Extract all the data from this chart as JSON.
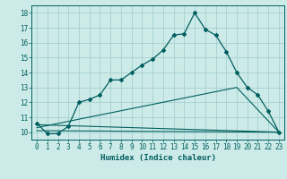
{
  "xlabel": "Humidex (Indice chaleur)",
  "bg_color": "#cceae8",
  "grid_color": "#aad4d2",
  "line_color": "#005f5f",
  "xlim": [
    -0.5,
    23.5
  ],
  "ylim": [
    9.5,
    18.5
  ],
  "xticks": [
    0,
    1,
    2,
    3,
    4,
    5,
    6,
    7,
    8,
    9,
    10,
    11,
    12,
    13,
    14,
    15,
    16,
    17,
    18,
    19,
    20,
    21,
    22,
    23
  ],
  "yticks": [
    10,
    11,
    12,
    13,
    14,
    15,
    16,
    17,
    18
  ],
  "main_x": [
    0,
    1,
    2,
    3,
    4,
    5,
    6,
    7,
    8,
    9,
    10,
    11,
    12,
    13,
    14,
    15,
    16,
    17,
    18,
    19,
    20,
    21,
    22,
    23
  ],
  "main_y": [
    10.6,
    9.9,
    9.9,
    10.4,
    12.0,
    12.2,
    12.5,
    13.5,
    13.5,
    14.0,
    14.5,
    14.9,
    15.5,
    16.5,
    16.6,
    18.0,
    16.9,
    16.5,
    15.4,
    14.0,
    13.0,
    12.5,
    11.4,
    10.0
  ],
  "line2_x": [
    0,
    23
  ],
  "line2_y": [
    10.5,
    10.0
  ],
  "line3_x": [
    0,
    19,
    23
  ],
  "line3_y": [
    10.3,
    13.0,
    10.0
  ],
  "line4_x": [
    0,
    23
  ],
  "line4_y": [
    10.1,
    10.0
  ],
  "tick_fontsize": 5.5,
  "xlabel_fontsize": 6.5
}
